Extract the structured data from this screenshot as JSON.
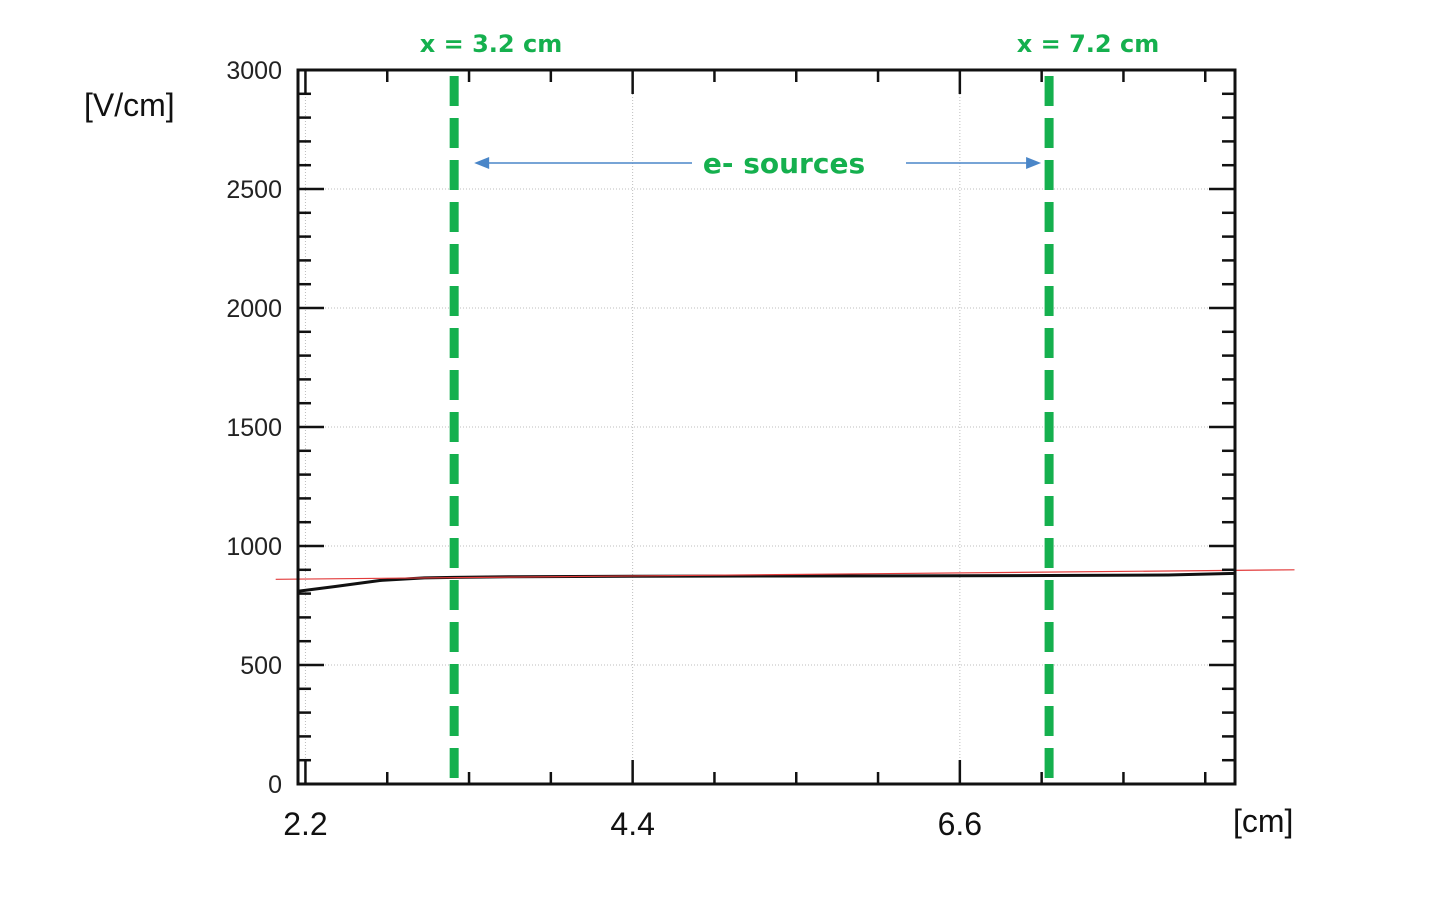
{
  "chart_data": {
    "type": "line",
    "xlabel": "[cm]",
    "ylabel": "[V/cm]",
    "xlim": [
      2.15,
      8.45
    ],
    "ylim": [
      0,
      3000
    ],
    "x_ticks": [
      "2.2",
      "4.4",
      "6.6"
    ],
    "x_tick_values": [
      2.2,
      4.4,
      6.6
    ],
    "y_ticks": [
      "0",
      "500",
      "1000",
      "1500",
      "2000",
      "2500",
      "3000"
    ],
    "y_tick_values": [
      0,
      500,
      1000,
      1500,
      2000,
      2500,
      3000
    ],
    "grid": true,
    "series": [
      {
        "color": "#111111",
        "x": [
          2.15,
          2.4,
          2.7,
          3.0,
          3.2,
          3.6,
          4.4,
          5.5,
          6.6,
          7.2,
          8.0,
          8.45
        ],
        "y": [
          810,
          830,
          855,
          866,
          868,
          871,
          873,
          874,
          875,
          876,
          878,
          885
        ]
      },
      {
        "color": "#e23b3b",
        "x": [
          2.0,
          8.85
        ],
        "y": [
          860,
          900
        ]
      }
    ],
    "annotations": {
      "markers": [
        {
          "x": 3.2,
          "label": "x = 3.2 cm"
        },
        {
          "x": 7.2,
          "label": "x = 7.2 cm"
        }
      ],
      "sources_label": "e- sources",
      "marker_color": "#15b04e",
      "arrow_color": "#4a86c8"
    }
  }
}
